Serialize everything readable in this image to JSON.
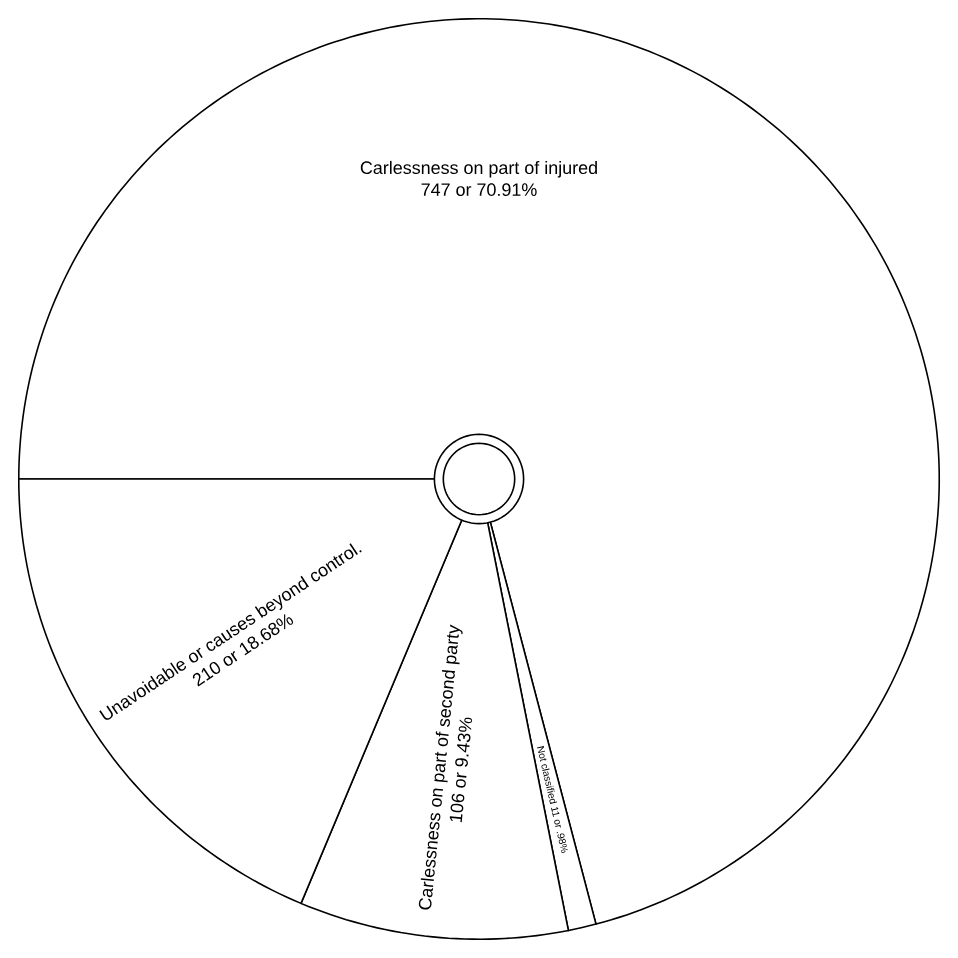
{
  "chart_data": {
    "type": "pie",
    "categories": [
      "Carlessness on part of injured",
      "Not classified",
      "Carlessness on part of second party",
      "Unavoidable or causes beyond control."
    ],
    "values": [
      70.91,
      0.98,
      9.43,
      18.68
    ],
    "value_labels": [
      "747 or 70.91%",
      "11 or .98%",
      "106 or 9.43%",
      "210 or 18.68%"
    ],
    "colors": [
      "#ffffff",
      "#ffffff",
      "#ffffff",
      "#ffffff"
    ]
  }
}
